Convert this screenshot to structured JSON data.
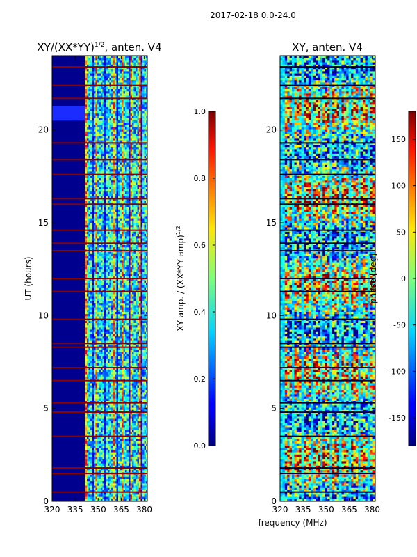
{
  "figure": {
    "suptitle": "2017-02-18 0.0-24.0"
  },
  "chart_data": [
    {
      "type": "heatmap",
      "title_main": "XY/(XX*YY)",
      "title_exp": "1/2",
      "title_rest": ", anten. V4",
      "ylabel": "UT (hours)",
      "xlabel": "",
      "x_ticks": [
        "320",
        "335",
        "350",
        "365",
        "380"
      ],
      "x_tick_values": [
        320,
        335,
        350,
        365,
        380
      ],
      "y_ticks": [
        "0",
        "5",
        "10",
        "15",
        "20"
      ],
      "y_tick_values": [
        0,
        5,
        10,
        15,
        20
      ],
      "xlim": [
        320,
        382
      ],
      "ylim": [
        0,
        24
      ],
      "colormap": "jet",
      "bright_band_hours": [
        20.5,
        21.3
      ],
      "red_flag_lines_hours": [
        0.5,
        1.5,
        1.8,
        3.5,
        4.8,
        5.3,
        6.5,
        7.2,
        8.3,
        8.5,
        9.8,
        11.3,
        12.0,
        13.5,
        13.9,
        14.6,
        16.0,
        16.3,
        17.6,
        18.4,
        19.3,
        21.7,
        22.4,
        23.4
      ],
      "colorbar": {
        "label_main": "XY amp. / (XX*YY amp)",
        "label_exp": "1/2",
        "ticks": [
          "0.0",
          "0.2",
          "0.4",
          "0.6",
          "0.8",
          "1.0"
        ],
        "tick_values": [
          0.0,
          0.2,
          0.4,
          0.6,
          0.8,
          1.0
        ],
        "range": [
          0.0,
          1.0
        ]
      }
    },
    {
      "type": "heatmap",
      "title": "XY, anten. V4",
      "xlabel": "frequency (MHz)",
      "ylabel": "",
      "x_ticks": [
        "320",
        "335",
        "350",
        "365",
        "380"
      ],
      "x_tick_values": [
        320,
        335,
        350,
        365,
        380
      ],
      "y_ticks": [
        "0",
        "5",
        "10",
        "15",
        "20"
      ],
      "y_tick_values": [
        0,
        5,
        10,
        15,
        20
      ],
      "xlim": [
        320,
        382
      ],
      "ylim": [
        0,
        24
      ],
      "colormap": "jet",
      "colorbar": {
        "label": "phase [deg]",
        "ticks": [
          "-150",
          "-100",
          "-50",
          "0",
          "50",
          "100",
          "150"
        ],
        "tick_values": [
          -150,
          -100,
          -50,
          0,
          50,
          100,
          150
        ],
        "range": [
          -180,
          180
        ]
      }
    }
  ],
  "colors": {
    "flag_red": "#8b0000",
    "background_navy": "#00007f"
  }
}
